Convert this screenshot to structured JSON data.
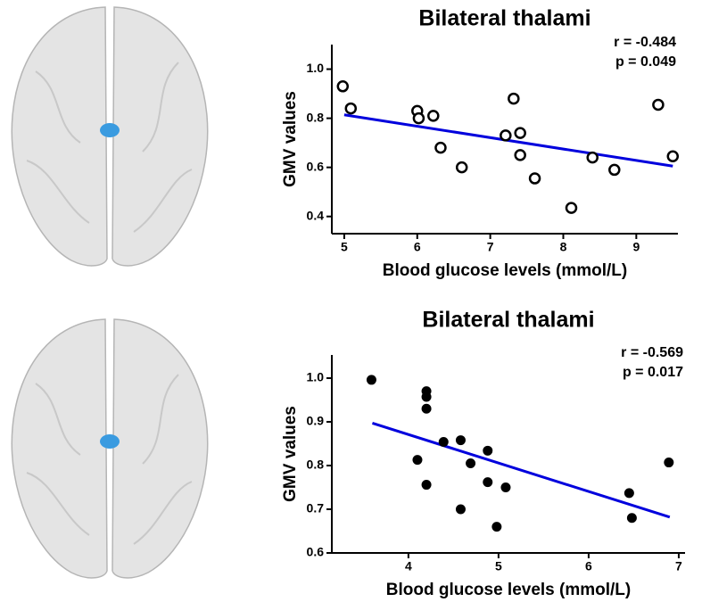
{
  "chart_data": [
    {
      "type": "scatter",
      "title": "Bilateral thalami",
      "xlabel": "Blood glucose levels (mmol/L)",
      "ylabel": "GMV values",
      "annotations": [
        "r = -0.484",
        "p = 0.049"
      ],
      "x": [
        4.98,
        5.09,
        6.0,
        6.02,
        6.22,
        6.32,
        6.61,
        7.21,
        7.32,
        7.41,
        7.41,
        7.61,
        8.11,
        8.4,
        8.7,
        9.3,
        9.5
      ],
      "values": [
        0.93,
        0.84,
        0.83,
        0.8,
        0.81,
        0.68,
        0.6,
        0.73,
        0.88,
        0.74,
        0.65,
        0.555,
        0.435,
        0.64,
        0.59,
        0.855,
        0.645
      ],
      "color": "#000000",
      "marker": "open",
      "fit": {
        "x": [
          5.0,
          9.5
        ],
        "values": [
          0.814,
          0.605
        ],
        "color": "#0000dd"
      },
      "xlim": [
        4.83,
        9.57
      ],
      "xticks": [
        5,
        6,
        7,
        8,
        9
      ],
      "ylim": [
        0.33,
        1.1
      ],
      "yticks": [
        0.4,
        0.6,
        0.8,
        {
          "value": 1,
          "label": "1.0"
        }
      ]
    },
    {
      "type": "scatter",
      "title": "Bilateral thalami",
      "xlabel": "Blood glucose levels (mmol/L)",
      "ylabel": "GMV values",
      "annotations": [
        "r = -0.569",
        "p = 0.017"
      ],
      "x": [
        3.59,
        4.2,
        4.2,
        4.2,
        4.1,
        4.2,
        4.39,
        4.58,
        4.69,
        4.88,
        4.88,
        5.08,
        4.58,
        4.98,
        6.45,
        6.48,
        6.89
      ],
      "values": [
        0.996,
        0.97,
        0.957,
        0.93,
        0.813,
        0.756,
        0.854,
        0.858,
        0.805,
        0.834,
        0.762,
        0.75,
        0.7,
        0.66,
        0.737,
        0.68,
        0.807
      ],
      "color": "#000000",
      "marker": "filled",
      "fit": {
        "x": [
          3.6,
          6.9
        ],
        "values": [
          0.897,
          0.682
        ],
        "color": "#0000dd"
      },
      "xlim": [
        3.15,
        7.07
      ],
      "xticks": [
        4,
        5,
        6,
        7
      ],
      "ylim": [
        0.6,
        1.053
      ],
      "yticks": [
        0.6,
        0.7,
        0.8,
        0.9,
        {
          "value": 1,
          "label": "1.0"
        }
      ]
    }
  ]
}
